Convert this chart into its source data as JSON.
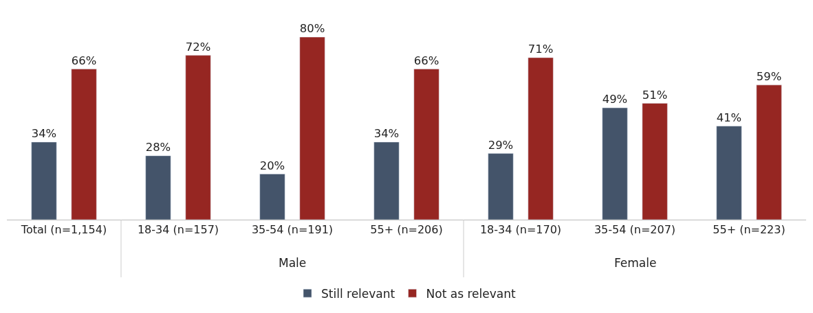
{
  "chart_data": {
    "type": "bar",
    "categories": [
      "Total (n=1,154)",
      "18-34 (n=157)",
      "35-54 (n=191)",
      "55+ (n=206)",
      "18-34 (n=170)",
      "35-54 (n=207)",
      "55+ (n=223)"
    ],
    "series": [
      {
        "name": "Still relevant",
        "color": "#44546a",
        "values": [
          34,
          28,
          20,
          34,
          29,
          49,
          41
        ],
        "value_labels": [
          "34%",
          "28%",
          "20%",
          "34%",
          "29%",
          "49%",
          "41%"
        ]
      },
      {
        "name": "Not as relevant",
        "color": "#962622",
        "values": [
          66,
          72,
          80,
          66,
          71,
          51,
          59
        ],
        "value_labels": [
          "66%",
          "72%",
          "80%",
          "66%",
          "71%",
          "51%",
          "59%"
        ]
      }
    ],
    "tick_labels": "x",
    "legend": "bottom",
    "annotations": [
      "Male",
      "Female"
    ]
  }
}
